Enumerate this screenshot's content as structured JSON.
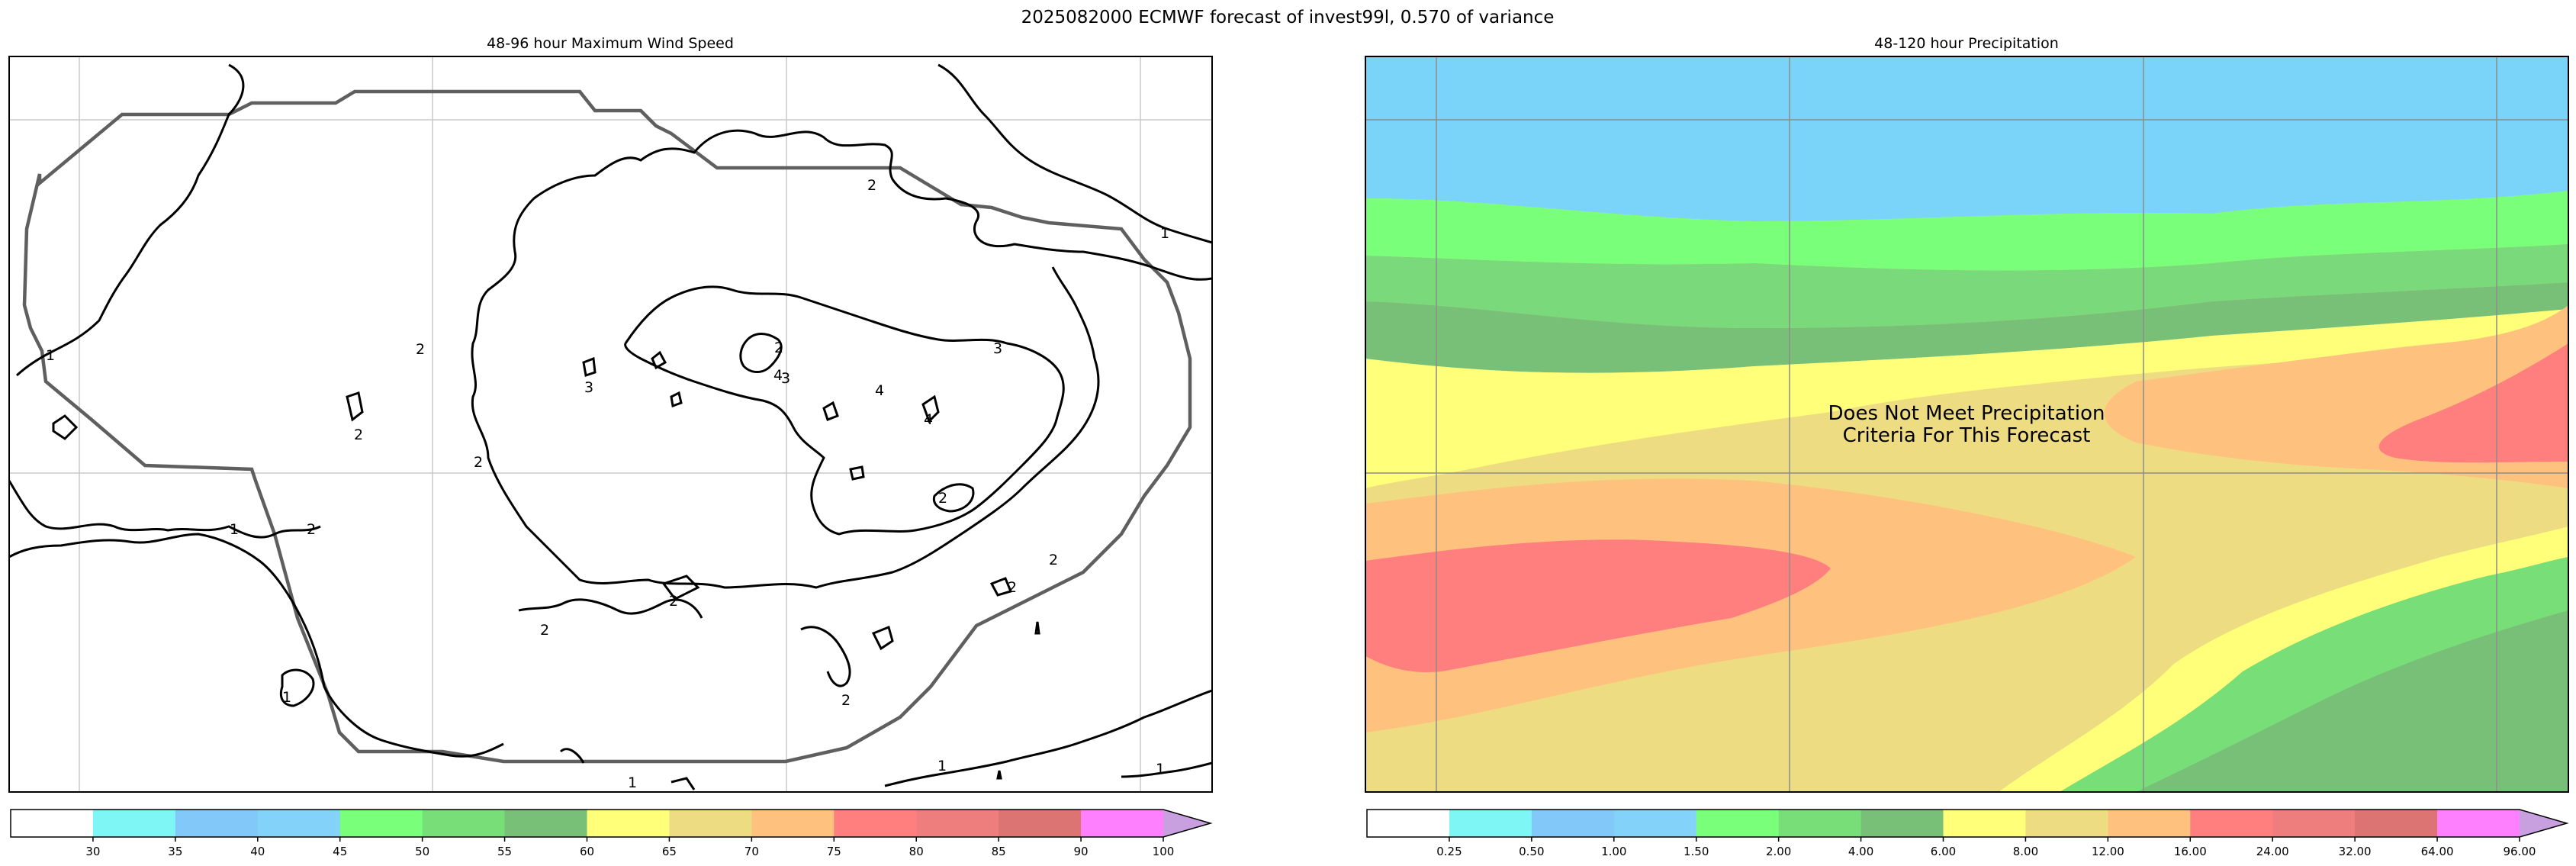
{
  "figure_title": "2025082000 ECMWF forecast of invest99l, 0.570 of variance",
  "chart_data": [
    {
      "type": "contour",
      "title": "48-96 hour Maximum Wind Speed",
      "contour_labels": [
        "1",
        "1",
        "1",
        "1",
        "1",
        "1",
        "1",
        "2",
        "2",
        "2",
        "2",
        "2",
        "2",
        "2",
        "2",
        "2",
        "2",
        "2",
        "2",
        "3",
        "3",
        "3",
        "4",
        "4",
        "4"
      ],
      "colorbar": {
        "ticks": [
          "30",
          "35",
          "40",
          "45",
          "50",
          "55",
          "60",
          "65",
          "70",
          "75",
          "80",
          "85",
          "90",
          "100"
        ],
        "colors": [
          "#ffffff",
          "#7ef6f6",
          "#82c8f8",
          "#82d2fa",
          "#7aff7a",
          "#78de78",
          "#78c078",
          "#ffff7a",
          "#eedc82",
          "#ffc27e",
          "#ff7f7f",
          "#ee7e7e",
          "#dc7474",
          "#ff80ff",
          "#c8a0e0"
        ]
      }
    },
    {
      "type": "filled-contour",
      "title": "48-120 hour Precipitation",
      "annotation": [
        "Does Not Meet Precipitation",
        "Criteria For This Forecast"
      ],
      "colorbar": {
        "ticks": [
          "0.25",
          "0.50",
          "1.00",
          "1.50",
          "2.00",
          "4.00",
          "6.00",
          "8.00",
          "12.00",
          "16.00",
          "24.00",
          "32.00",
          "64.00",
          "96.00"
        ],
        "colors": [
          "#ffffff",
          "#7ef6f6",
          "#82c8f8",
          "#82d2fa",
          "#7aff7a",
          "#78de78",
          "#78c078",
          "#ffff7a",
          "#eedc82",
          "#ffc27e",
          "#ff7f7f",
          "#ee7e7e",
          "#dc7474",
          "#ff80ff",
          "#c8a0e0"
        ]
      }
    }
  ]
}
